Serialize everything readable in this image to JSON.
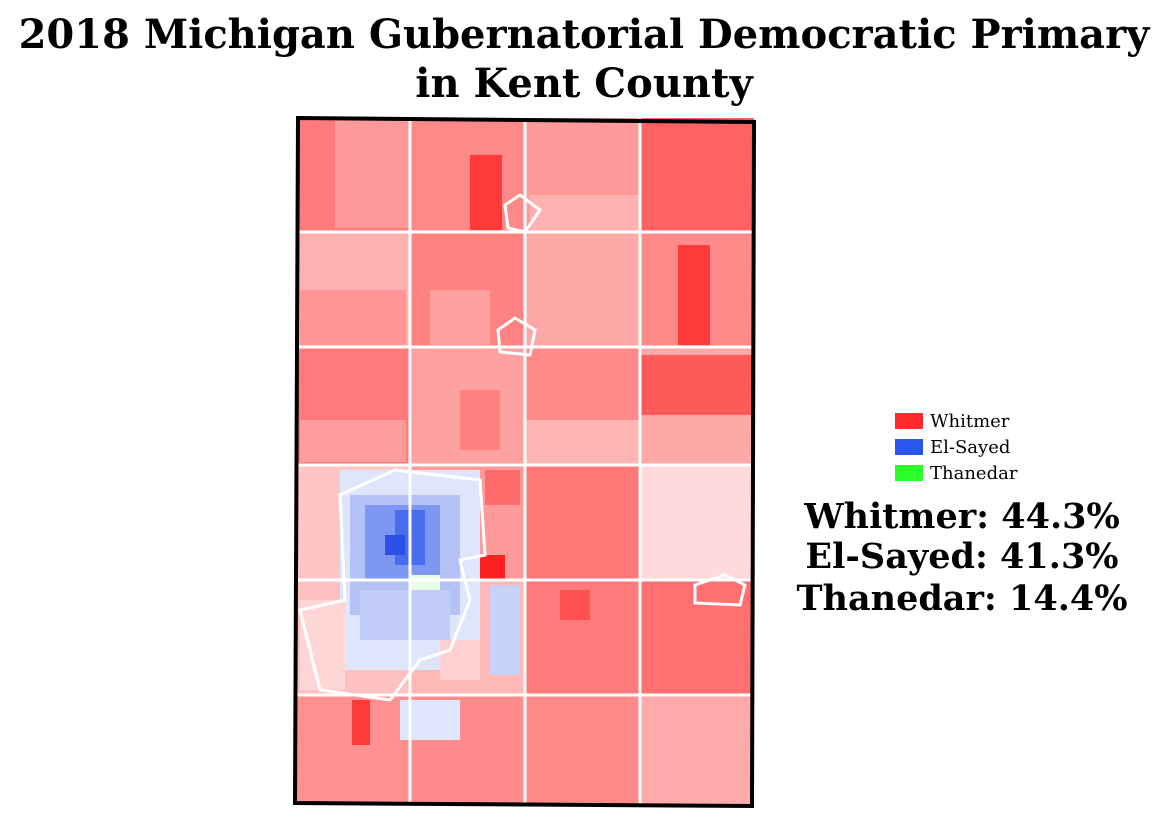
{
  "title": [
    "2018 Michigan Gubernatorial Democratic Primary",
    "in Kent County"
  ],
  "legend": [
    {
      "name": "Whitmer",
      "color": "#ff2a2a"
    },
    {
      "name": "El-Sayed",
      "color": "#2a55f0"
    },
    {
      "name": "Thanedar",
      "color": "#2aff2a"
    }
  ],
  "results": [
    "Whitmer: 44.3%",
    "El-Sayed: 41.3%",
    "Thanedar: 14.4%"
  ]
}
